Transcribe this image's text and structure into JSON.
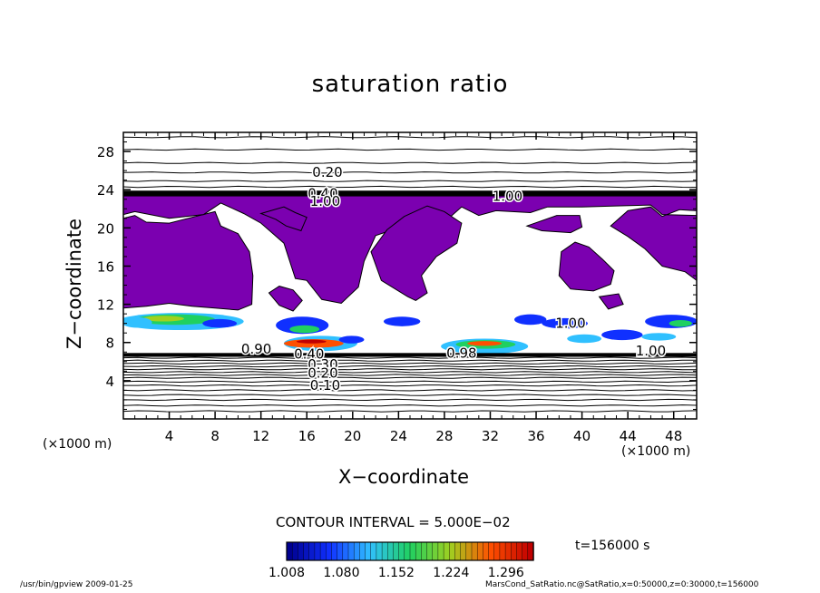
{
  "chart_data": {
    "type": "heatmap",
    "title": "saturation ratio",
    "xlabel": "X−coordinate",
    "ylabel": "Z−coordinate",
    "x_unit": "(×1000 m)",
    "y_unit": "(×1000 m)",
    "xlim": [
      0,
      50
    ],
    "ylim": [
      0,
      30
    ],
    "x_ticks": [
      4,
      8,
      12,
      16,
      20,
      24,
      28,
      32,
      36,
      40,
      44,
      48
    ],
    "y_ticks": [
      4,
      8,
      12,
      16,
      20,
      24,
      28
    ],
    "x_tick_labels": [
      "4",
      "8",
      "12",
      "16",
      "20",
      "24",
      "28",
      "32",
      "36",
      "40",
      "44",
      "48"
    ],
    "y_tick_labels": [
      "4",
      "8",
      "12",
      "16",
      "20",
      "24",
      "28"
    ],
    "contour_interval": "CONTOUR INTERVAL = 5.000E−02",
    "contour_labels": [
      {
        "text": "0.20",
        "x": 17.8,
        "z": 25.8
      },
      {
        "text": "0.40",
        "x": 17.4,
        "z": 23.6
      },
      {
        "text": "1.00",
        "x": 17.6,
        "z": 22.8
      },
      {
        "text": "1.00",
        "x": 33.5,
        "z": 23.3
      },
      {
        "text": "0.40",
        "x": 16.2,
        "z": 6.8
      },
      {
        "text": "0.30",
        "x": 17.4,
        "z": 5.7
      },
      {
        "text": "0.20",
        "x": 17.4,
        "z": 4.8
      },
      {
        "text": "0.10",
        "x": 17.6,
        "z": 3.5
      },
      {
        "text": "0.98",
        "x": 29.5,
        "z": 6.9
      },
      {
        "text": "1.00",
        "x": 46.0,
        "z": 7.1
      },
      {
        "text": "1.00",
        "x": 39.0,
        "z": 10.0
      },
      {
        "text": "0.90",
        "x": 11.6,
        "z": 7.3
      }
    ],
    "colorbar": {
      "labels": [
        "1.008",
        "1.080",
        "1.152",
        "1.224",
        "1.296"
      ],
      "min": 1.008,
      "max": 1.332,
      "colors": [
        "#000090",
        "#1030ff",
        "#30c0ff",
        "#20d060",
        "#a0d020",
        "#ff5000",
        "#c00000"
      ]
    },
    "supersaturated_fill": "#7b00b0",
    "time_label": "t=156000 s",
    "footer_left": "/usr/bin/gpview  2009-01-25",
    "footer_right": "MarsCond_SatRatio.nc@SatRatio,x=0:50000,z=0:30000,t=156000"
  }
}
